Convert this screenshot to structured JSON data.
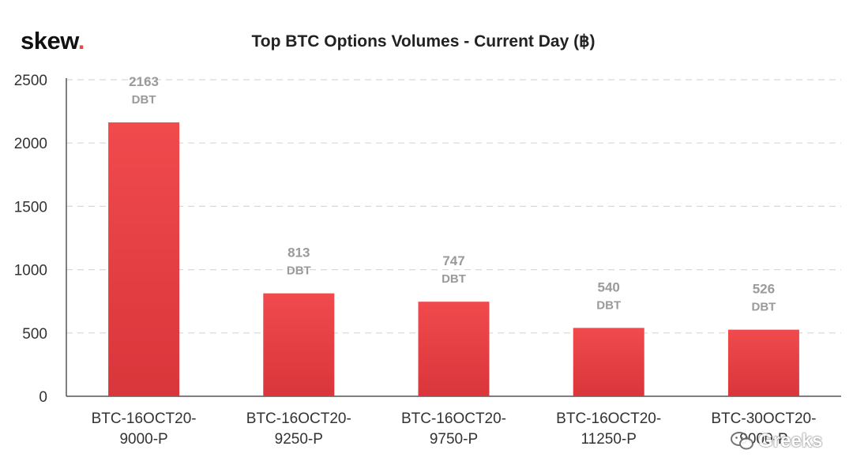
{
  "brand": {
    "name": "skew",
    "dot": "."
  },
  "watermark": {
    "text": "Greeks",
    "icon": "wechat-icon"
  },
  "colors": {
    "bar_top": "#f04a4d",
    "bar_bottom": "#d9363b",
    "grid": "#d8d8d8",
    "axis": "#555555",
    "label": "#9a9a9a",
    "tick": "#333333"
  },
  "chart_data": {
    "type": "bar",
    "title": "Top BTC Options Volumes - Current Day (฿)",
    "categories": [
      [
        "BTC-16OCT20-",
        "9000-P"
      ],
      [
        "BTC-16OCT20-",
        "9250-P"
      ],
      [
        "BTC-16OCT20-",
        "9750-P"
      ],
      [
        "BTC-16OCT20-",
        "11250-P"
      ],
      [
        "BTC-30OCT20-",
        "9000-P"
      ]
    ],
    "values": [
      2163,
      813,
      747,
      540,
      526
    ],
    "value_unit": "DBT",
    "ylim": [
      0,
      2500
    ],
    "yticks": [
      0,
      500,
      1000,
      1500,
      2000,
      2500
    ],
    "grid": true,
    "xlabel": "",
    "ylabel": ""
  }
}
